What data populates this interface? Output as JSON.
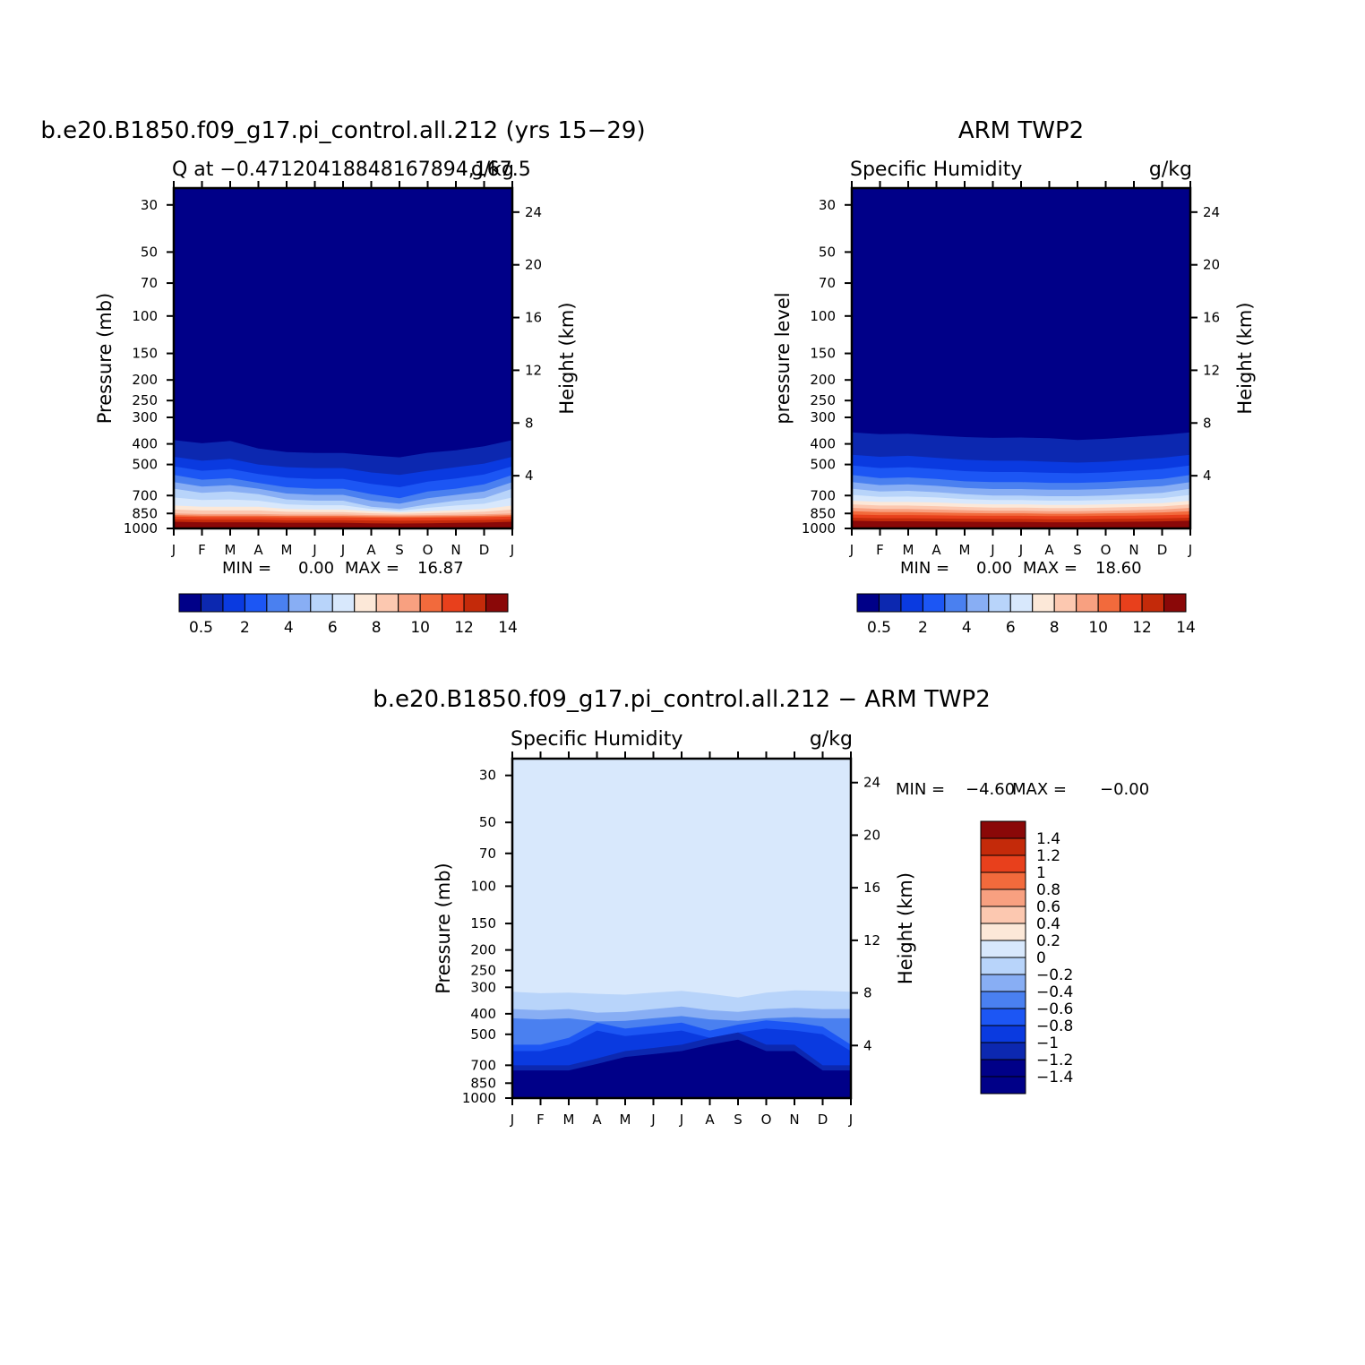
{
  "chart_data": [
    {
      "type": "contour",
      "title": "b.e20.B1850.f09_g17.pi_control.all.212 (yrs 15−29)",
      "subtitle_left": "Q at −0.47120418848167894,167.5",
      "subtitle_right": "g/kg",
      "xlabel": "",
      "ylabel": "Pressure (mb)",
      "ylabel_right": "Height (km)",
      "x_ticks": [
        "J",
        "F",
        "M",
        "A",
        "M",
        "J",
        "J",
        "A",
        "S",
        "O",
        "N",
        "D",
        "J"
      ],
      "y_ticks": [
        30,
        50,
        70,
        100,
        150,
        200,
        250,
        300,
        400,
        500,
        700,
        850,
        1000
      ],
      "y_ticks_right": [
        24,
        20,
        16,
        12,
        8,
        4
      ],
      "ylim": [
        1000,
        25
      ],
      "stats": {
        "min_label": "MIN =",
        "min": "0.00",
        "max_label": "MAX =",
        "max": "16.87"
      },
      "colorbar": {
        "orientation": "horizontal",
        "colors": [
          "#000088",
          "#0c28b0",
          "#0a3ae0",
          "#1c56f4",
          "#4a80f0",
          "#88aef4",
          "#b8d4fa",
          "#d8e8fc",
          "#fce8d8",
          "#fcc8b0",
          "#f8a080",
          "#f26a3c",
          "#e8401c",
          "#c42a0a",
          "#8a0808"
        ],
        "labels": [
          "0.5",
          "2",
          "4",
          "6",
          "8",
          "10",
          "12",
          "14"
        ]
      },
      "field": {
        "levels": [
          0.5,
          1,
          2,
          3,
          4,
          5,
          6,
          7,
          8,
          9,
          10,
          11,
          12,
          13,
          14
        ],
        "month_pressure_of_value": {
          "0.5": [
            346,
            356,
            346,
            381,
            398,
            402,
            402,
            407,
            414,
            393,
            386,
            368,
            346
          ],
          "2": [
            460,
            480,
            470,
            500,
            515,
            520,
            520,
            545,
            560,
            535,
            515,
            495,
            460
          ],
          "4": [
            560,
            590,
            580,
            610,
            640,
            650,
            650,
            690,
            720,
            670,
            650,
            620,
            560
          ],
          "6": [
            650,
            680,
            670,
            690,
            730,
            740,
            740,
            790,
            810,
            770,
            740,
            720,
            650
          ],
          "8": [
            780,
            790,
            790,
            790,
            810,
            815,
            815,
            830,
            840,
            830,
            820,
            810,
            780
          ],
          "10": [
            850,
            855,
            855,
            855,
            860,
            860,
            860,
            865,
            868,
            865,
            862,
            858,
            850
          ],
          "12": [
            880,
            885,
            885,
            885,
            888,
            888,
            888,
            890,
            892,
            890,
            888,
            886,
            880
          ],
          "14": [
            930,
            935,
            935,
            935,
            940,
            940,
            940,
            945,
            948,
            945,
            942,
            938,
            930
          ]
        }
      }
    },
    {
      "type": "contour",
      "title": "ARM TWP2",
      "subtitle_left": "Specific Humidity",
      "subtitle_right": "g/kg",
      "xlabel": "",
      "ylabel": "pressure level",
      "ylabel_right": "Height (km)",
      "x_ticks": [
        "J",
        "F",
        "M",
        "A",
        "M",
        "J",
        "J",
        "A",
        "S",
        "O",
        "N",
        "D",
        "J"
      ],
      "y_ticks": [
        30,
        50,
        70,
        100,
        150,
        200,
        250,
        300,
        400,
        500,
        700,
        850,
        1000
      ],
      "y_ticks_right": [
        24,
        20,
        16,
        12,
        8,
        4
      ],
      "ylim": [
        1000,
        25
      ],
      "stats": {
        "min_label": "MIN =",
        "min": "0.00",
        "max_label": "MAX =",
        "max": "18.60"
      },
      "colorbar": {
        "orientation": "horizontal",
        "colors": [
          "#000088",
          "#0c28b0",
          "#0a3ae0",
          "#1c56f4",
          "#4a80f0",
          "#88aef4",
          "#b8d4fa",
          "#d8e8fc",
          "#fce8d8",
          "#fcc8b0",
          "#f8a080",
          "#f26a3c",
          "#e8401c",
          "#c42a0a",
          "#8a0808"
        ],
        "labels": [
          "0.5",
          "2",
          "4",
          "6",
          "8",
          "10",
          "12",
          "14"
        ]
      },
      "field": {
        "levels": [
          0.5,
          1,
          2,
          3,
          4,
          5,
          6,
          7,
          8,
          9,
          10,
          11,
          12,
          13,
          14
        ],
        "month_pressure_of_value": {
          "0.5": [
            305,
            310,
            310,
            315,
            320,
            322,
            320,
            322,
            330,
            325,
            318,
            312,
            305
          ],
          "2": [
            450,
            460,
            455,
            465,
            475,
            480,
            480,
            485,
            490,
            485,
            475,
            465,
            450
          ],
          "4": [
            560,
            580,
            575,
            585,
            600,
            605,
            605,
            610,
            610,
            605,
            595,
            585,
            560
          ],
          "6": [
            650,
            670,
            665,
            675,
            690,
            700,
            700,
            705,
            705,
            700,
            690,
            680,
            650
          ],
          "8": [
            740,
            750,
            750,
            755,
            765,
            770,
            770,
            775,
            775,
            770,
            765,
            760,
            740
          ],
          "10": [
            800,
            810,
            810,
            815,
            820,
            825,
            825,
            830,
            830,
            825,
            820,
            815,
            800
          ],
          "12": [
            860,
            865,
            865,
            868,
            870,
            872,
            872,
            875,
            875,
            872,
            870,
            866,
            860
          ],
          "14": [
            920,
            925,
            925,
            928,
            930,
            932,
            932,
            935,
            935,
            932,
            930,
            926,
            920
          ]
        }
      }
    },
    {
      "type": "contour",
      "title": "b.e20.B1850.f09_g17.pi_control.all.212 − ARM TWP2",
      "subtitle_left": "Specific Humidity",
      "subtitle_right": "g/kg",
      "xlabel": "",
      "ylabel": "Pressure (mb)",
      "ylabel_right": "Height (km)",
      "x_ticks": [
        "J",
        "F",
        "M",
        "A",
        "M",
        "J",
        "J",
        "A",
        "S",
        "O",
        "N",
        "D",
        "J"
      ],
      "y_ticks": [
        30,
        50,
        70,
        100,
        150,
        200,
        250,
        300,
        400,
        500,
        700,
        850,
        1000
      ],
      "y_ticks_right": [
        24,
        20,
        16,
        12,
        8,
        4
      ],
      "ylim": [
        1000,
        25
      ],
      "stats": {
        "min_label": "MIN =",
        "min": "−4.60",
        "max_label": "MAX =",
        "max": "−0.00"
      },
      "colorbar": {
        "orientation": "vertical",
        "colors": [
          "#000088",
          "#0c28b0",
          "#0a3ae0",
          "#1c56f4",
          "#4a80f0",
          "#88aef4",
          "#b8d4fa",
          "#d8e8fc",
          "#fce8d8",
          "#fcc8b0",
          "#f8a080",
          "#f26a3c",
          "#e8401c",
          "#c42a0a",
          "#8a0808"
        ],
        "labels": [
          "1.4",
          "1.2",
          "1",
          "0.8",
          "0.6",
          "0.4",
          "0.2",
          "0",
          "−0.2",
          "−0.4",
          "−0.6",
          "−0.8",
          "−1",
          "−1.2",
          "−1.4"
        ]
      },
      "field": {
        "levels": [
          -1.4,
          -1.2,
          -1,
          -0.8,
          -0.6,
          -0.4,
          -0.2,
          0
        ],
        "month_pressure_of_value": {
          "-0.2": [
            315,
            320,
            318,
            322,
            325,
            318,
            312,
            322,
            335,
            318,
            310,
            312,
            315
          ],
          "-0.4": [
            380,
            385,
            380,
            395,
            392,
            380,
            370,
            385,
            392,
            380,
            375,
            380,
            380
          ],
          "-0.8": [
            560,
            560,
            520,
            440,
            470,
            455,
            440,
            480,
            450,
            430,
            440,
            460,
            560
          ],
          "-1.4": [
            700,
            700,
            700,
            650,
            600,
            580,
            560,
            520,
            490,
            560,
            560,
            700,
            700
          ]
        }
      }
    }
  ]
}
